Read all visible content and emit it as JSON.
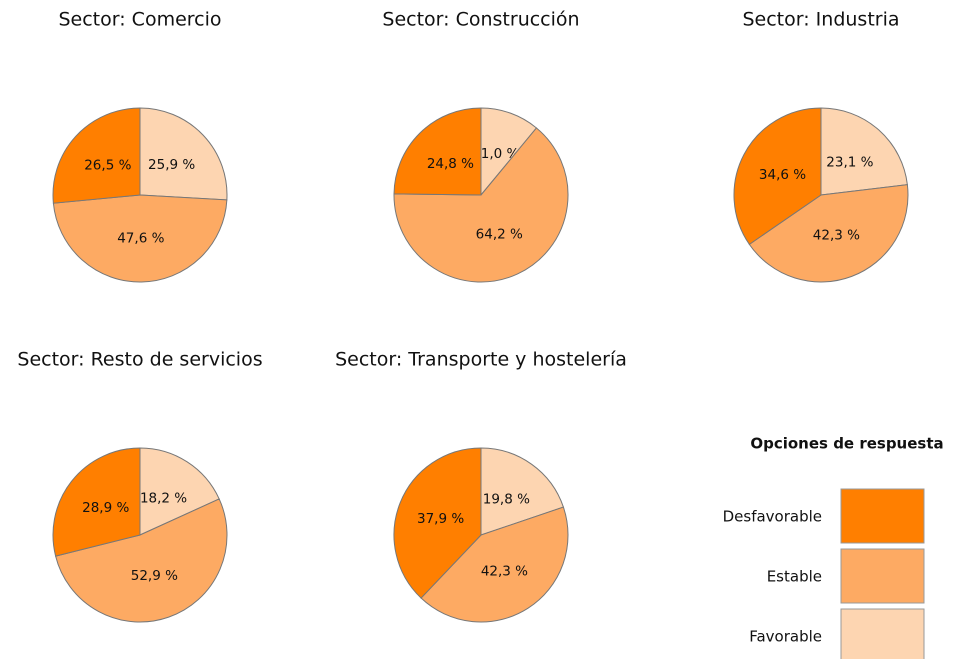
{
  "chart_data": [
    {
      "type": "pie",
      "title": "Sector: Comercio",
      "categories": [
        "Desfavorable",
        "Estable",
        "Favorable"
      ],
      "values": [
        26.5,
        47.6,
        25.9
      ],
      "value_labels": [
        "26,5 %",
        "47,6 %",
        "25,9 %"
      ],
      "colors": [
        "#ff7f00",
        "#fdaa63",
        "#fdd5b1"
      ]
    },
    {
      "type": "pie",
      "title": "Sector: Construcción",
      "categories": [
        "Desfavorable",
        "Estable",
        "Favorable"
      ],
      "values": [
        24.8,
        64.2,
        11.0
      ],
      "value_labels": [
        "24,8 %",
        "64,2 %",
        "11,0 %"
      ],
      "colors": [
        "#ff7f00",
        "#fdaa63",
        "#fdd5b1"
      ]
    },
    {
      "type": "pie",
      "title": "Sector: Industria",
      "categories": [
        "Desfavorable",
        "Estable",
        "Favorable"
      ],
      "values": [
        34.6,
        42.3,
        23.1
      ],
      "value_labels": [
        "34,6 %",
        "42,3 %",
        "23,1 %"
      ],
      "colors": [
        "#ff7f00",
        "#fdaa63",
        "#fdd5b1"
      ]
    },
    {
      "type": "pie",
      "title": "Sector: Resto de servicios",
      "categories": [
        "Desfavorable",
        "Estable",
        "Favorable"
      ],
      "values": [
        28.9,
        52.9,
        18.2
      ],
      "value_labels": [
        "28,9 %",
        "52,9 %",
        "18,2 %"
      ],
      "colors": [
        "#ff7f00",
        "#fdaa63",
        "#fdd5b1"
      ]
    },
    {
      "type": "pie",
      "title": "Sector: Transporte y hostelería",
      "categories": [
        "Desfavorable",
        "Estable",
        "Favorable"
      ],
      "values": [
        37.9,
        42.3,
        19.8
      ],
      "value_labels": [
        "37,9 %",
        "42,3 %",
        "19,8 %"
      ],
      "colors": [
        "#ff7f00",
        "#fdaa63",
        "#fdd5b1"
      ]
    }
  ],
  "legend_title": "Opciones de respuesta"
}
